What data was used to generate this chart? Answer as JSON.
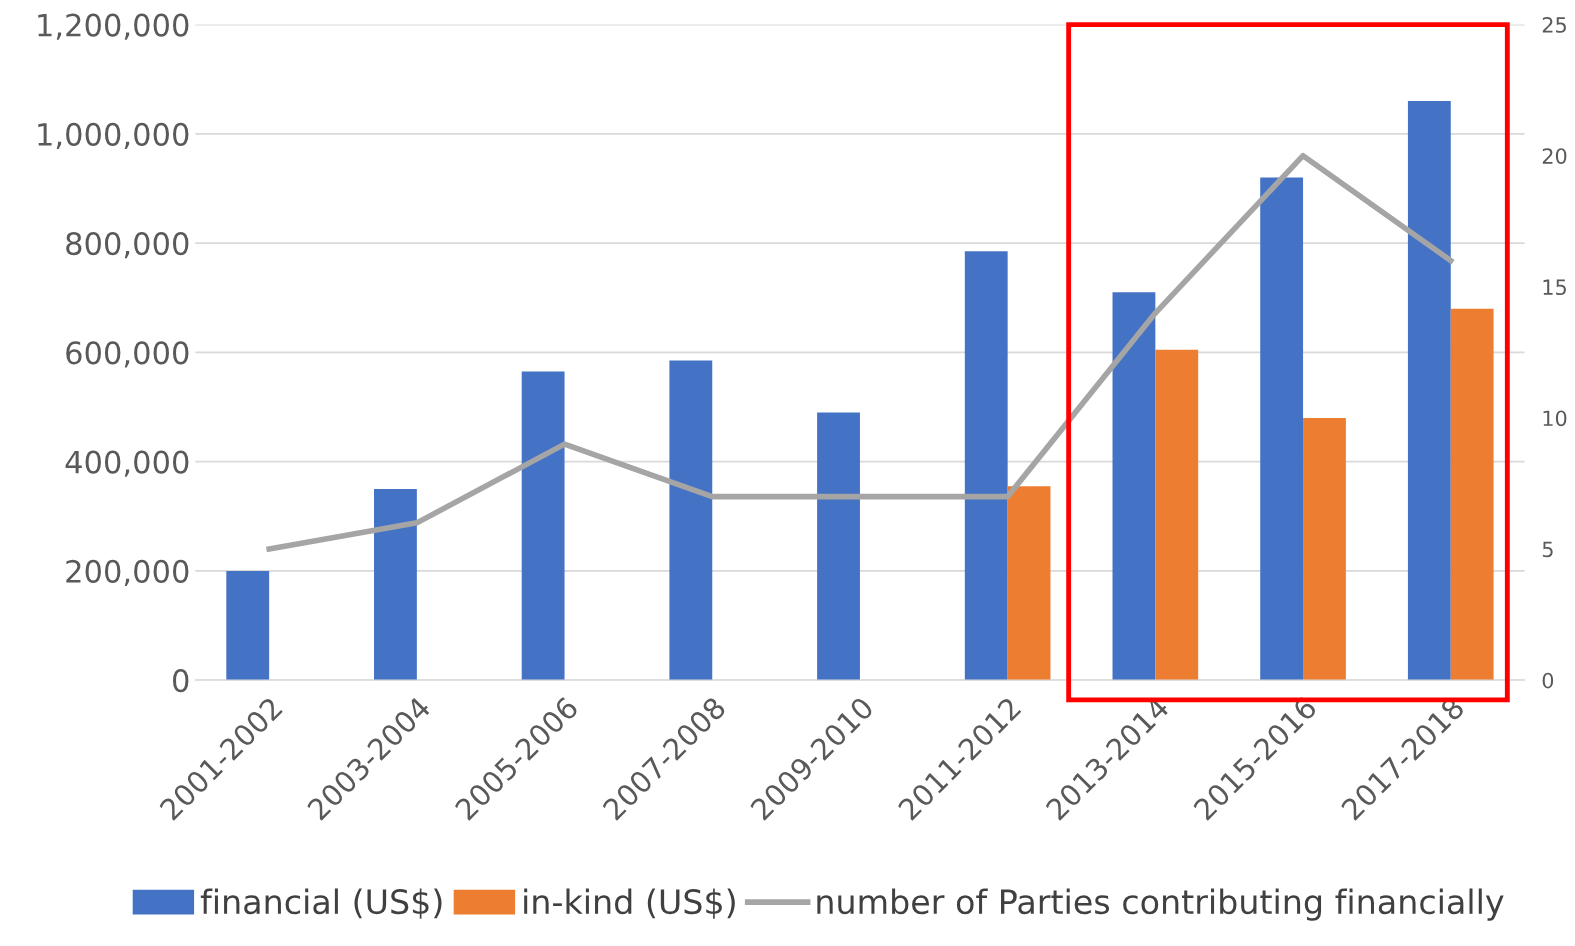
{
  "chart_data": {
    "type": "bar",
    "categories": [
      "2001-2002",
      "2003-2004",
      "2005-2006",
      "2007-2008",
      "2009-2010",
      "2011-2012",
      "2013-2014",
      "2015-2016",
      "2017-2018"
    ],
    "series": [
      {
        "name": "financial (US$)",
        "color": "#4472c4",
        "values": [
          200000,
          350000,
          565000,
          585000,
          490000,
          785000,
          710000,
          920000,
          1060000
        ]
      },
      {
        "name": "in-kind (US$)",
        "color": "#ed7d31",
        "values": [
          null,
          null,
          null,
          null,
          null,
          355000,
          605000,
          480000,
          680000
        ]
      },
      {
        "name": "number of Parties contributing financially",
        "color": "#a5a5a5",
        "type": "line",
        "axis": "y2",
        "values": [
          5,
          6,
          9,
          7,
          7,
          7,
          14,
          20,
          16
        ]
      }
    ],
    "ylim": [
      0,
      1200000
    ],
    "yticks": [
      {
        "value": 0,
        "label": "0"
      },
      {
        "value": 200000,
        "label": "200,000"
      },
      {
        "value": 400000,
        "label": "400,000"
      },
      {
        "value": 600000,
        "label": "600,000"
      },
      {
        "value": 800000,
        "label": "800,000"
      },
      {
        "value": 1000000,
        "label": "1,000,000"
      },
      {
        "value": 1200000,
        "label": "1,200,000"
      }
    ],
    "y2lim": [
      0,
      25
    ],
    "y2ticks": [
      0,
      5,
      10,
      15,
      20,
      25
    ],
    "grid": "y",
    "legend": "bottom"
  }
}
